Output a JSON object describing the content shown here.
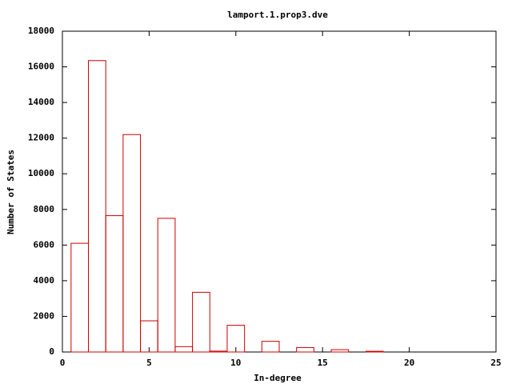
{
  "chart_data": {
    "type": "bar",
    "title": "lamport.1.prop3.dve",
    "x_label": "In-degree",
    "y_label": "Number of States",
    "x": [
      1,
      2,
      3,
      4,
      5,
      6,
      7,
      8,
      9,
      10,
      12,
      14,
      16,
      18
    ],
    "values": [
      6100,
      16350,
      7650,
      12200,
      1750,
      7500,
      300,
      3350,
      50,
      1500,
      600,
      250,
      130,
      40
    ],
    "bar_width": 1,
    "color": "#cc0000",
    "xlim": [
      0,
      25
    ],
    "xticks": [
      0,
      5,
      10,
      15,
      20,
      25
    ],
    "ylim": [
      0,
      18000
    ],
    "yticks": [
      0,
      2000,
      4000,
      6000,
      8000,
      10000,
      12000,
      14000,
      16000,
      18000
    ]
  }
}
